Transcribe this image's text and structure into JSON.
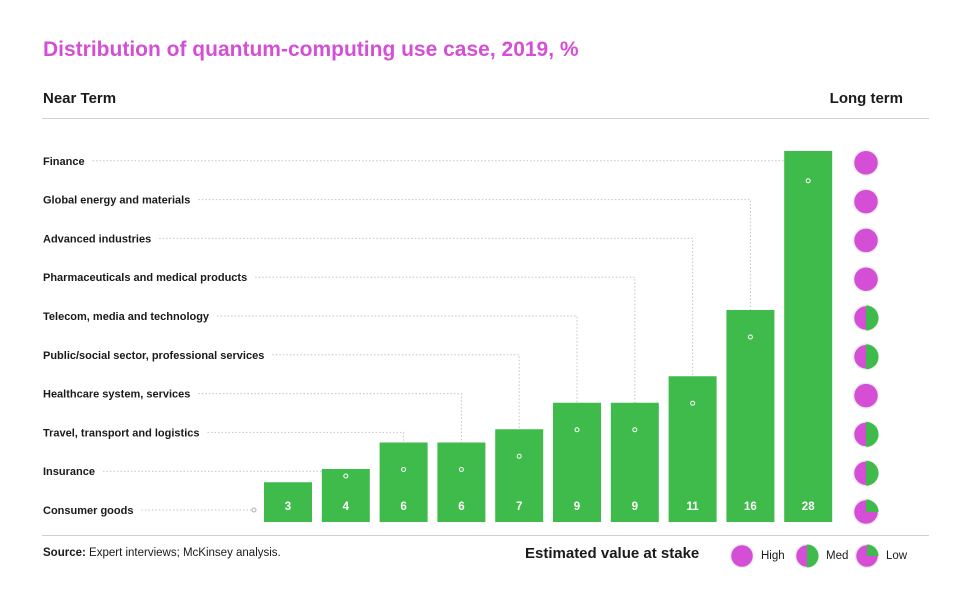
{
  "title": "Distribution of quantum-computing use case, 2019, %",
  "near_term_label": "Near Term",
  "long_term_label": "Long term",
  "source_label": "Source:",
  "source_text": " Expert interviews; McKinsey analysis.",
  "legend": {
    "title": "Estimated value at stake",
    "high": "High",
    "med": "Med",
    "low": "Low"
  },
  "colors": {
    "title": "#d54fd6",
    "bar": "#3fbb4c",
    "high": "#d54fd6",
    "low_green": "#3fbb4c"
  },
  "chart_data": {
    "type": "bar",
    "title": "Distribution of quantum-computing use case, 2019, %",
    "categories": [
      "Consumer goods",
      "Insurance",
      "Travel, transport and logistics",
      "Healthcare system, services",
      "Public/social sector, professional services",
      "Telecom, media and technology",
      "Pharmaceuticals and medical products",
      "Advanced industries",
      "Global energy and materials",
      "Finance"
    ],
    "values": [
      3,
      4,
      6,
      6,
      7,
      9,
      9,
      11,
      16,
      28
    ],
    "long_term_value": [
      "Low",
      "Med",
      "Med",
      "High",
      "Med",
      "Med",
      "High",
      "High",
      "High",
      "High"
    ],
    "ylim": [
      0,
      28
    ]
  }
}
